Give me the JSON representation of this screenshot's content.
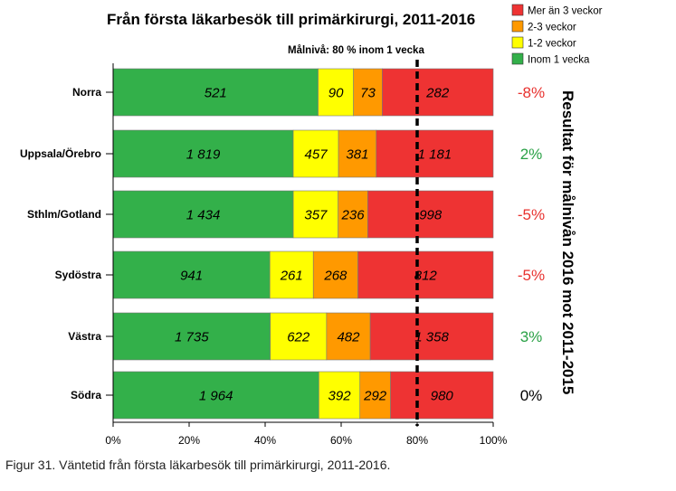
{
  "caption": "Figur 31. Väntetid från första läkarbesök till primärkirurgi, 2011-2016.",
  "chart_data": {
    "type": "bar",
    "orientation": "horizontal",
    "stacked": "percent",
    "title": "Från första läkarbesök till primärkirurgi,  2011-2016",
    "target_label": "Målnivå: 80 % inom 1 vecka",
    "target_value": 80,
    "xlim": [
      0,
      100
    ],
    "x_ticks": [
      "0%",
      "20%",
      "40%",
      "60%",
      "80%",
      "100%"
    ],
    "legend_position": "top-right",
    "categories": [
      "Norra",
      "Uppsala/Örebro",
      "Sthlm/Gotland",
      "Sydöstra",
      "Västra",
      "Södra"
    ],
    "series": [
      {
        "name": "Inom 1 vecka",
        "color": "#33b04a",
        "values": [
          521,
          1819,
          1434,
          941,
          1735,
          1964
        ],
        "labels": [
          "521",
          "1 819",
          "1 434",
          "941",
          "1 735",
          "1 964"
        ]
      },
      {
        "name": "1-2 veckor",
        "color": "#ffff00",
        "values": [
          90,
          457,
          357,
          261,
          622,
          392
        ],
        "labels": [
          "90",
          "457",
          "357",
          "261",
          "622",
          "392"
        ]
      },
      {
        "name": "2-3 veckor",
        "color": "#ff9900",
        "values": [
          73,
          381,
          236,
          268,
          482,
          292
        ],
        "labels": [
          "73",
          "381",
          "236",
          "268",
          "482",
          "292"
        ]
      },
      {
        "name": "Mer än 3 veckor",
        "color": "#ee3333",
        "values": [
          282,
          1181,
          998,
          812,
          1358,
          980
        ],
        "labels": [
          "282",
          "1 181",
          "998",
          "812",
          "1 358",
          "980"
        ]
      }
    ],
    "legend_order": [
      "Mer än 3 veckor",
      "2-3 veckor",
      "1-2 veckor",
      "Inom 1 vecka"
    ],
    "results": [
      {
        "text": "-8%",
        "color": "#e8312e"
      },
      {
        "text": "2%",
        "color": "#2aa146"
      },
      {
        "text": "-5%",
        "color": "#e8312e"
      },
      {
        "text": "-5%",
        "color": "#e8312e"
      },
      {
        "text": "3%",
        "color": "#2aa146"
      },
      {
        "text": "0%",
        "color": "#000000"
      }
    ],
    "results_axis_label": "Resultat för målnivån 2016 mot 2011-2015"
  }
}
